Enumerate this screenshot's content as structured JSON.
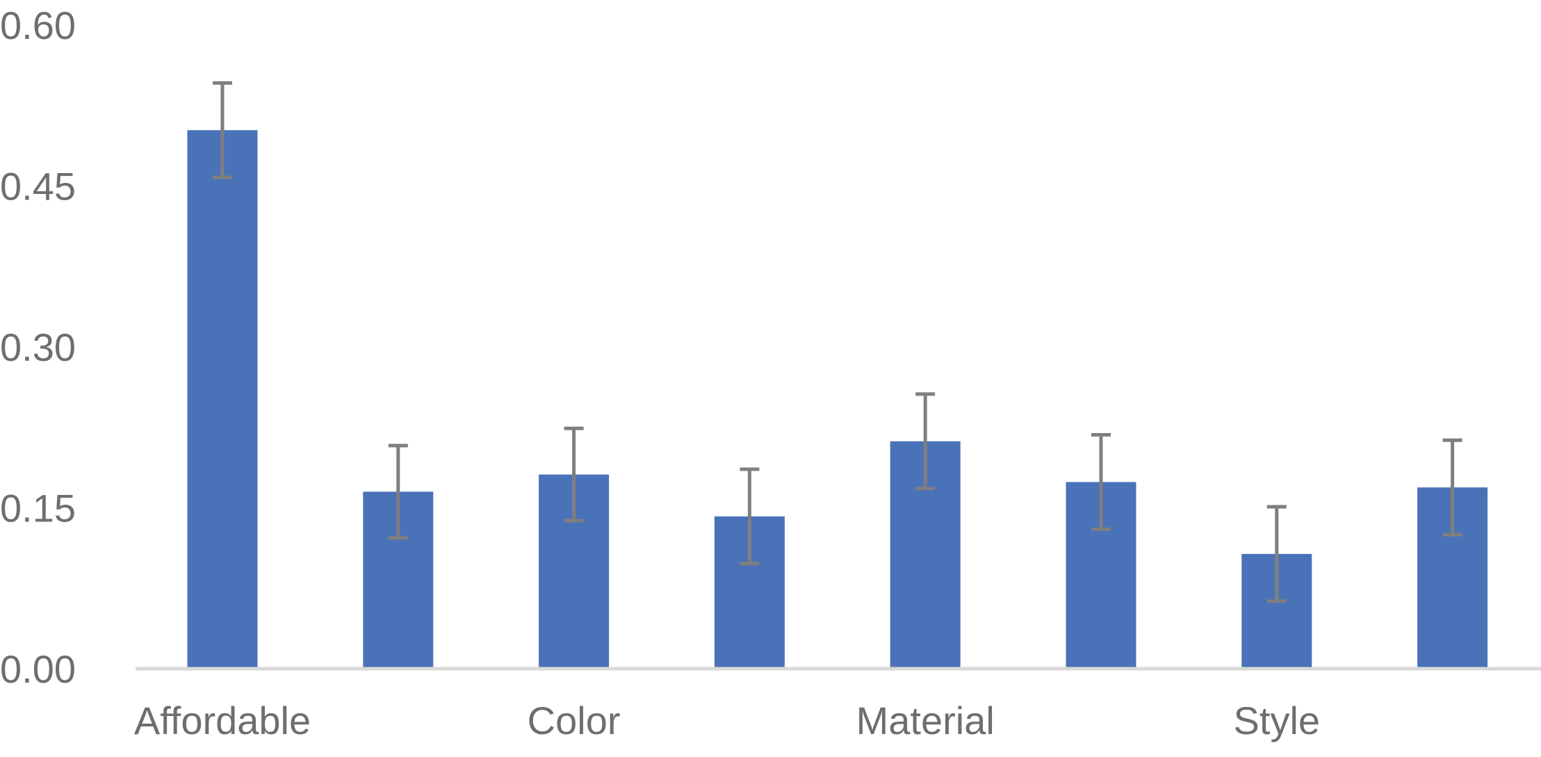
{
  "chart_data": {
    "type": "bar",
    "title": "",
    "xlabel": "",
    "ylabel": "",
    "ylim": [
      0,
      0.6
    ],
    "yticks": [
      "0.00",
      "0.15",
      "0.30",
      "0.45",
      "0.60"
    ],
    "ytick_values": [
      0,
      0.15,
      0.3,
      0.45,
      0.6
    ],
    "categories": [
      "Affordable",
      "",
      "Color",
      "",
      "Material",
      "",
      "Style",
      ""
    ],
    "values": [
      0.502,
      0.165,
      0.181,
      0.142,
      0.212,
      0.174,
      0.107,
      0.169
    ],
    "error": [
      0.044,
      0.043,
      0.043,
      0.044,
      0.044,
      0.044,
      0.044,
      0.044
    ],
    "grid": false,
    "legend": "none"
  },
  "colors": {
    "bar": "#4a72b8",
    "error_bar": "#7f7f7f",
    "axis": "#d9d9d9",
    "text": "#6e6e6e"
  }
}
